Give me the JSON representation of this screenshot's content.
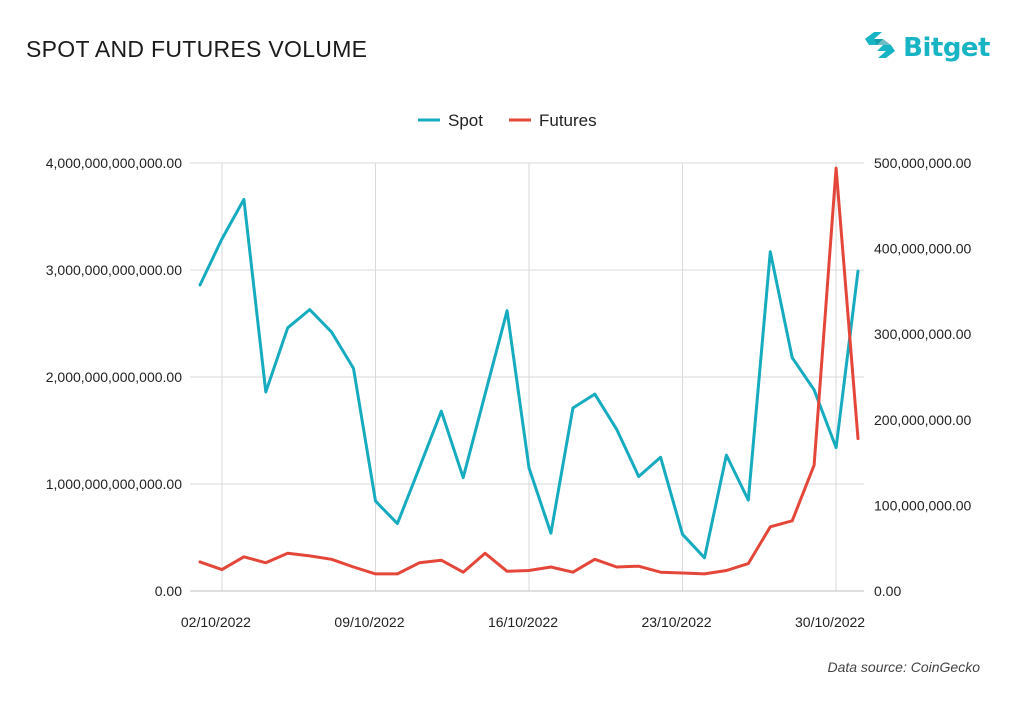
{
  "header": {
    "title": "SPOT AND FUTURES VOLUME",
    "brand": "Bitget",
    "source": "Data source: CoinGecko"
  },
  "colors": {
    "spot": "#17abc0",
    "futures": "#e4473a",
    "brand": "#17b4c4",
    "grid": "#d9d9d9"
  },
  "chart_data": {
    "type": "line",
    "title": "SPOT AND FUTURES VOLUME",
    "x": [
      "01/10/2022",
      "02/10/2022",
      "03/10/2022",
      "04/10/2022",
      "05/10/2022",
      "06/10/2022",
      "07/10/2022",
      "08/10/2022",
      "09/10/2022",
      "10/10/2022",
      "11/10/2022",
      "12/10/2022",
      "13/10/2022",
      "14/10/2022",
      "15/10/2022",
      "16/10/2022",
      "17/10/2022",
      "18/10/2022",
      "19/10/2022",
      "20/10/2022",
      "21/10/2022",
      "22/10/2022",
      "23/10/2022",
      "24/10/2022",
      "25/10/2022",
      "26/10/2022",
      "27/10/2022",
      "28/10/2022",
      "29/10/2022",
      "30/10/2022",
      "31/10/2022"
    ],
    "x_ticks": [
      "02/10/2022",
      "09/10/2022",
      "16/10/2022",
      "23/10/2022",
      "30/10/2022"
    ],
    "series": [
      {
        "name": "Spot",
        "axis": "left",
        "values": [
          2860000000000,
          3290000000000,
          3660000000000,
          1860000000000,
          2460000000000,
          2630000000000,
          2420000000000,
          2080000000000,
          840000000000,
          630000000000,
          1150000000000,
          1680000000000,
          1060000000000,
          1840000000000,
          2620000000000,
          1150000000000,
          540000000000,
          1710000000000,
          1840000000000,
          1510000000000,
          1070000000000,
          1250000000000,
          530000000000,
          310000000000,
          1270000000000,
          850000000000,
          3170000000000,
          2180000000000,
          1880000000000,
          1340000000000,
          2990000000000
        ]
      },
      {
        "name": "Futures",
        "axis": "right",
        "values": [
          34000000,
          25000000,
          40000000,
          33000000,
          44000000,
          41000000,
          37000000,
          28000000,
          20000000,
          20000000,
          33000000,
          36000000,
          22000000,
          44000000,
          23000000,
          24000000,
          28000000,
          22000000,
          37000000,
          28000000,
          29000000,
          22000000,
          21000000,
          20000000,
          24000000,
          32000000,
          75000000,
          82000000,
          147000000,
          494000000,
          178000000
        ]
      }
    ],
    "y_left": {
      "ticks": [
        "0.00",
        "1,000,000,000,000.00",
        "2,000,000,000,000.00",
        "3,000,000,000,000.00",
        "4,000,000,000,000.00"
      ],
      "ylim": [
        0,
        4000000000000
      ]
    },
    "y_right": {
      "ticks": [
        "0.00",
        "100,000,000.00",
        "200,000,000.00",
        "300,000,000.00",
        "400,000,000.00",
        "500,000,000.00"
      ],
      "ylim": [
        0,
        500000000
      ]
    },
    "legend": {
      "position": "top-center",
      "entries": [
        "Spot",
        "Futures"
      ]
    },
    "grid": true
  }
}
